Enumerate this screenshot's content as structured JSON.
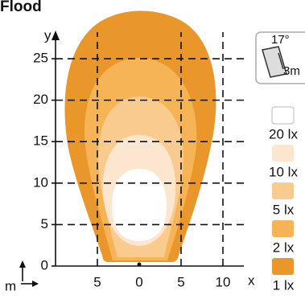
{
  "chart_data": {
    "type": "isolux",
    "title": "Flood",
    "xlabel": "x",
    "ylabel": "y",
    "unit_label": "m",
    "xlim": [
      -10,
      12.5
    ],
    "ylim": [
      0,
      28.2
    ],
    "xticks": [
      {
        "value": -5,
        "label": "5"
      },
      0,
      5,
      10
    ],
    "yticks": [
      0,
      5,
      10,
      15,
      20,
      25
    ],
    "grid": true,
    "series": [
      {
        "name": "20 lx",
        "color": "#ffffff"
      },
      {
        "name": "10 lx",
        "color": "#fde6cf"
      },
      {
        "name": "5 lx",
        "color": "#facb8f"
      },
      {
        "name": "2 lx",
        "color": "#f6b457"
      },
      {
        "name": "1 lx",
        "color": "#e9962a"
      }
    ],
    "icon": {
      "angle": "17°",
      "height": "3m"
    }
  }
}
